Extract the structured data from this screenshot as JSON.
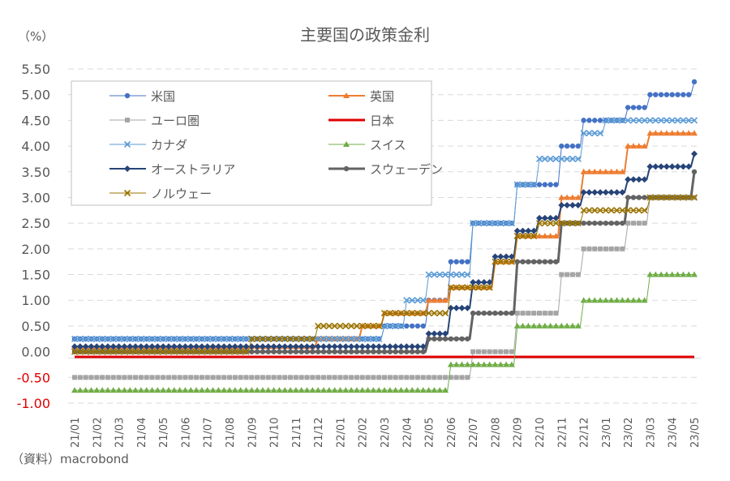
{
  "chart_data": {
    "type": "line",
    "title": "主要国の政策金利",
    "ylabel": "（%）",
    "source": "（資料）macrobond",
    "ylim": [
      -1.0,
      5.5
    ],
    "ytick_step": 0.5,
    "yticks": [
      "5.50",
      "5.00",
      "4.50",
      "4.00",
      "3.50",
      "3.00",
      "2.50",
      "2.00",
      "1.50",
      "1.00",
      "0.50",
      "0.00",
      "-0.50",
      "-1.00"
    ],
    "negative_tick_color": "#e00000",
    "grid": true,
    "legend_position": "top-left",
    "categories": [
      "21/01",
      "21/02",
      "21/03",
      "21/04",
      "21/05",
      "21/06",
      "21/07",
      "21/08",
      "21/09",
      "21/10",
      "21/11",
      "21/12",
      "22/01",
      "22/02",
      "22/03",
      "22/04",
      "22/05",
      "22/06",
      "22/07",
      "22/08",
      "22/09",
      "22/10",
      "22/11",
      "22/12",
      "23/01",
      "23/02",
      "23/03",
      "23/04",
      "23/05"
    ],
    "series": [
      {
        "name": "米国",
        "color": "#4472c4",
        "marker": "circle",
        "width": 1,
        "values": [
          0.25,
          0.25,
          0.25,
          0.25,
          0.25,
          0.25,
          0.25,
          0.25,
          0.25,
          0.25,
          0.25,
          0.25,
          0.25,
          0.25,
          0.5,
          0.5,
          1.0,
          1.75,
          2.5,
          2.5,
          3.25,
          3.25,
          4.0,
          4.5,
          4.5,
          4.75,
          5.0,
          5.0,
          5.25
        ]
      },
      {
        "name": "英国",
        "color": "#ed7d31",
        "marker": "triangle",
        "width": 2,
        "values": [
          0.1,
          0.1,
          0.1,
          0.1,
          0.1,
          0.1,
          0.1,
          0.1,
          0.1,
          0.1,
          0.1,
          0.25,
          0.25,
          0.5,
          0.75,
          0.75,
          1.0,
          1.25,
          1.25,
          1.75,
          2.25,
          2.25,
          3.0,
          3.5,
          3.5,
          4.0,
          4.25,
          4.25,
          4.25
        ]
      },
      {
        "name": "ユーロ圏",
        "color": "#a5a5a5",
        "marker": "square",
        "width": 1,
        "values": [
          -0.5,
          -0.5,
          -0.5,
          -0.5,
          -0.5,
          -0.5,
          -0.5,
          -0.5,
          -0.5,
          -0.5,
          -0.5,
          -0.5,
          -0.5,
          -0.5,
          -0.5,
          -0.5,
          -0.5,
          -0.5,
          0.0,
          0.0,
          0.75,
          0.75,
          1.5,
          2.0,
          2.0,
          2.5,
          3.0,
          3.0,
          3.0
        ]
      },
      {
        "name": "日本",
        "color": "#e00000",
        "marker": "none",
        "width": 3,
        "values": [
          -0.1,
          -0.1,
          -0.1,
          -0.1,
          -0.1,
          -0.1,
          -0.1,
          -0.1,
          -0.1,
          -0.1,
          -0.1,
          -0.1,
          -0.1,
          -0.1,
          -0.1,
          -0.1,
          -0.1,
          -0.1,
          -0.1,
          -0.1,
          -0.1,
          -0.1,
          -0.1,
          -0.1,
          -0.1,
          -0.1,
          -0.1,
          -0.1,
          -0.1
        ]
      },
      {
        "name": "カナダ",
        "color": "#5b9bd5",
        "marker": "x",
        "width": 1,
        "values": [
          0.25,
          0.25,
          0.25,
          0.25,
          0.25,
          0.25,
          0.25,
          0.25,
          0.25,
          0.25,
          0.25,
          0.25,
          0.25,
          0.25,
          0.5,
          1.0,
          1.5,
          1.5,
          2.5,
          2.5,
          3.25,
          3.75,
          3.75,
          4.25,
          4.5,
          4.5,
          4.5,
          4.5,
          4.5
        ]
      },
      {
        "name": "スイス",
        "color": "#70ad47",
        "marker": "triangle",
        "width": 1,
        "values": [
          -0.75,
          -0.75,
          -0.75,
          -0.75,
          -0.75,
          -0.75,
          -0.75,
          -0.75,
          -0.75,
          -0.75,
          -0.75,
          -0.75,
          -0.75,
          -0.75,
          -0.75,
          -0.75,
          -0.75,
          -0.25,
          -0.25,
          -0.25,
          0.5,
          0.5,
          0.5,
          1.0,
          1.0,
          1.0,
          1.5,
          1.5,
          1.5
        ]
      },
      {
        "name": "オーストラリア",
        "color": "#264478",
        "marker": "diamond",
        "width": 2,
        "values": [
          0.1,
          0.1,
          0.1,
          0.1,
          0.1,
          0.1,
          0.1,
          0.1,
          0.1,
          0.1,
          0.1,
          0.1,
          0.1,
          0.1,
          0.1,
          0.1,
          0.35,
          0.85,
          1.35,
          1.85,
          2.35,
          2.6,
          2.85,
          3.1,
          3.1,
          3.35,
          3.6,
          3.6,
          3.85
        ]
      },
      {
        "name": "スウェーデン",
        "color": "#636363",
        "marker": "circle",
        "width": 3,
        "values": [
          0.0,
          0.0,
          0.0,
          0.0,
          0.0,
          0.0,
          0.0,
          0.0,
          0.0,
          0.0,
          0.0,
          0.0,
          0.0,
          0.0,
          0.0,
          0.0,
          0.25,
          0.25,
          0.75,
          0.75,
          1.75,
          1.75,
          2.5,
          2.5,
          2.5,
          3.0,
          3.0,
          3.0,
          3.5
        ]
      },
      {
        "name": "ノルウェー",
        "color": "#997300",
        "marker": "x",
        "width": 1,
        "values": [
          0.0,
          0.0,
          0.0,
          0.0,
          0.0,
          0.0,
          0.0,
          0.0,
          0.25,
          0.25,
          0.25,
          0.5,
          0.5,
          0.5,
          0.75,
          0.75,
          0.75,
          1.25,
          1.25,
          1.75,
          2.25,
          2.5,
          2.5,
          2.75,
          2.75,
          2.75,
          3.0,
          3.0,
          3.0
        ]
      }
    ]
  }
}
